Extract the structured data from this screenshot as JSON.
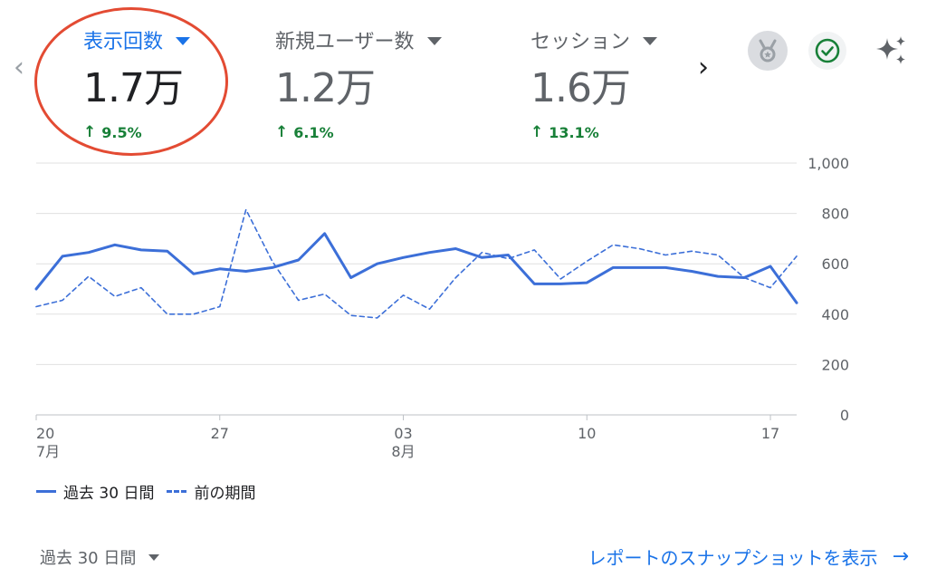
{
  "metrics": [
    {
      "label": "表示回数",
      "value": "1.7万",
      "change": "9.5%",
      "active": true
    },
    {
      "label": "新規ユーザー数",
      "value": "1.2万",
      "change": "6.1%",
      "active": false
    },
    {
      "label": "セッション",
      "value": "1.6万",
      "change": "13.1%",
      "active": false
    }
  ],
  "nav": {
    "prev_icon": "‹",
    "next_icon": "›"
  },
  "icons": {
    "badge": "medal-icon",
    "check": "check-circle-icon",
    "sparkle": "sparkle-icon"
  },
  "colors": {
    "accent": "#1a73e8",
    "line": "#3c6fd8",
    "positive": "#188038",
    "highlight": "#e34b33"
  },
  "chart_data": {
    "type": "line",
    "x": [
      "20",
      "21",
      "22",
      "23",
      "24",
      "25",
      "26",
      "27",
      "28",
      "29",
      "30",
      "31",
      "01",
      "02",
      "03",
      "04",
      "05",
      "06",
      "07",
      "08",
      "09",
      "10",
      "11",
      "12",
      "13",
      "14",
      "15",
      "16",
      "17",
      "18"
    ],
    "x_ticks": [
      {
        "day": "20",
        "month": "7月"
      },
      {
        "day": "27",
        "month": ""
      },
      {
        "day": "03",
        "month": "8月"
      },
      {
        "day": "10",
        "month": ""
      },
      {
        "day": "17",
        "month": ""
      }
    ],
    "y_ticks": [
      "0",
      "200",
      "400",
      "600",
      "800",
      "1,000"
    ],
    "ylim": [
      0,
      1000
    ],
    "series": [
      {
        "name": "過去 30 日間",
        "style": "solid",
        "values": [
          500,
          630,
          645,
          675,
          655,
          650,
          560,
          580,
          570,
          585,
          615,
          720,
          545,
          600,
          625,
          645,
          660,
          625,
          635,
          520,
          520,
          525,
          585,
          585,
          585,
          570,
          550,
          545,
          590,
          445
        ]
      },
      {
        "name": "前の期間",
        "style": "dashed",
        "values": [
          430,
          455,
          550,
          470,
          505,
          400,
          400,
          430,
          815,
          610,
          455,
          480,
          395,
          385,
          475,
          420,
          545,
          645,
          620,
          655,
          540,
          610,
          675,
          660,
          635,
          650,
          635,
          545,
          505,
          630
        ]
      }
    ]
  },
  "footer": {
    "period_label": "過去 30 日間",
    "report_link": "レポートのスナップショットを表示",
    "report_arrow": "→"
  }
}
